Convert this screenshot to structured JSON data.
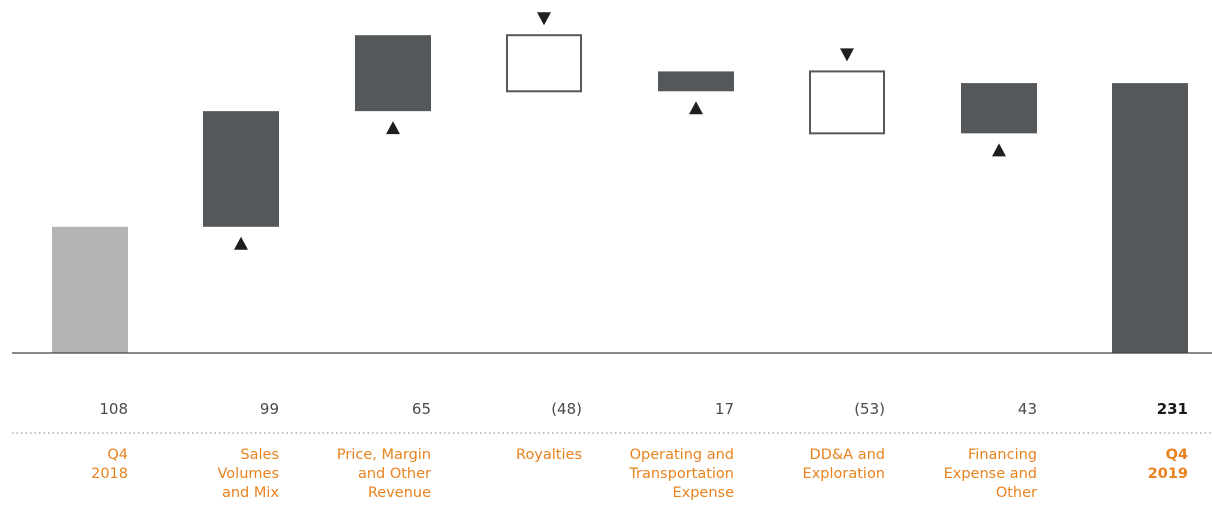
{
  "chart_data": {
    "type": "bar",
    "subtype": "waterfall",
    "categories": [
      [
        "Q4",
        "2018"
      ],
      [
        "Sales",
        "Volumes",
        "and Mix"
      ],
      [
        "Price, Margin",
        "and Other",
        "Revenue"
      ],
      [
        "Royalties"
      ],
      [
        "Operating and",
        "Transportation",
        "Expense"
      ],
      [
        "DD&A and",
        "Exploration"
      ],
      [
        "Financing",
        "Expense and",
        "Other"
      ],
      [
        "Q4",
        "2019"
      ]
    ],
    "value_labels": [
      "108",
      "99",
      "65",
      "(48)",
      "17",
      "(53)",
      "43",
      "231"
    ],
    "values": [
      108,
      99,
      65,
      -48,
      17,
      -53,
      43,
      231
    ],
    "kinds": [
      "start",
      "delta",
      "delta",
      "delta",
      "delta",
      "delta",
      "delta",
      "total"
    ],
    "ylim": [
      0,
      285
    ],
    "title": "",
    "xlabel": "",
    "ylabel": "",
    "grid": false,
    "legend": "none",
    "colors": {
      "start": "#b3b3b4",
      "increase": "#55585a",
      "decrease_fill": "#ffffff",
      "decrease_stroke": "#55585a",
      "total": "#55585a",
      "category_text": "#e8821e",
      "value_text": "#4a4a4a",
      "baseline": "#444444",
      "separator": "#9a9a9a"
    }
  }
}
